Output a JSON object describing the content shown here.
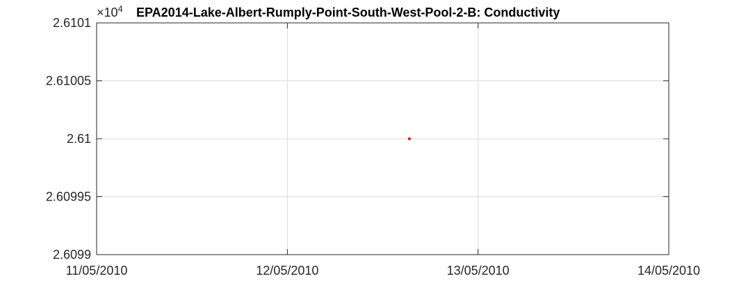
{
  "chart_data": {
    "type": "scatter",
    "title": "EPA2014-Lake-Albert-Rumply-Point-South-West-Pool-2-B: Conductivity",
    "xlabel": "",
    "ylabel": "",
    "y_exponent_label": "×10",
    "y_exponent_power": "4",
    "x_ticks": [
      {
        "value": 0,
        "label": "11/05/2010"
      },
      {
        "value": 1,
        "label": "12/05/2010"
      },
      {
        "value": 2,
        "label": "13/05/2010"
      },
      {
        "value": 3,
        "label": "14/05/2010"
      }
    ],
    "y_ticks": [
      {
        "value": 2.6099,
        "label": "2.6099"
      },
      {
        "value": 2.60995,
        "label": "2.60995"
      },
      {
        "value": 2.61,
        "label": "2.61"
      },
      {
        "value": 2.61005,
        "label": "2.61005"
      },
      {
        "value": 2.6101,
        "label": "2.6101"
      }
    ],
    "xlim": [
      0,
      3
    ],
    "ylim": [
      2.6099,
      2.6101
    ],
    "grid": true,
    "series": [
      {
        "name": "Conductivity",
        "color": "#ff0000",
        "points": [
          {
            "x": 1.64,
            "y": 2.61
          }
        ]
      }
    ]
  }
}
